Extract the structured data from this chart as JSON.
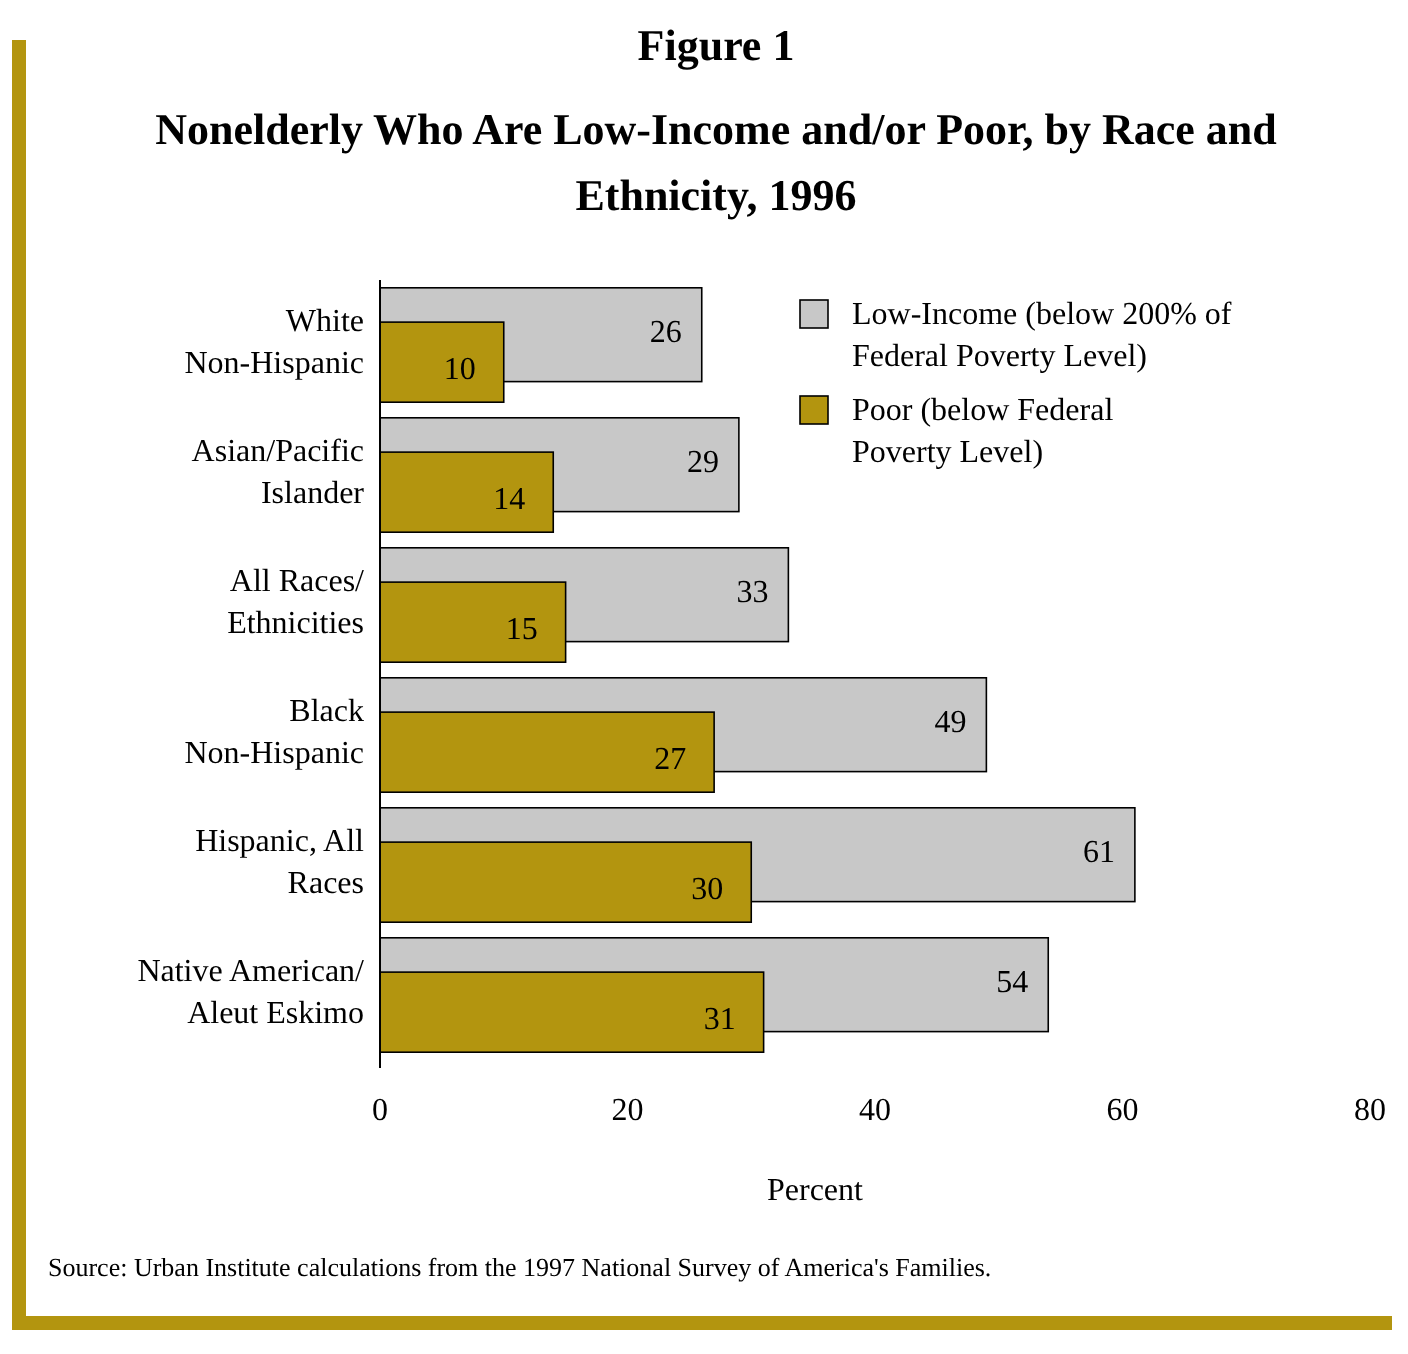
{
  "chart_data": {
    "type": "bar",
    "orientation": "horizontal",
    "title": "Figure 1",
    "subtitle": "Nonelderly Who Are Low-Income and/or Poor, by Race and Ethnicity, 1996",
    "xlabel": "Percent",
    "categories": [
      "White Non-Hispanic",
      "Asian/Pacific Islander",
      "All Races/ Ethnicities",
      "Black Non-Hispanic",
      "Hispanic, All Races",
      "Native American/ Aleut Eskimo"
    ],
    "series": [
      {
        "name": "Low-Income (below 200% of Federal Poverty Level)",
        "color": "#c8c8c8",
        "values": [
          26,
          29,
          33,
          49,
          61,
          54
        ]
      },
      {
        "name": "Poor (below Federal Poverty Level)",
        "color": "#b3950f",
        "values": [
          10,
          14,
          15,
          27,
          30,
          31
        ]
      }
    ],
    "xlim": [
      0,
      80
    ],
    "xticks": [
      0,
      20,
      40,
      60,
      80
    ],
    "data_labels": true,
    "legend": "top right",
    "grid": false,
    "annotations": [
      "Source:  Urban Institute calculations from the 1997 National Survey of America's Families."
    ]
  }
}
